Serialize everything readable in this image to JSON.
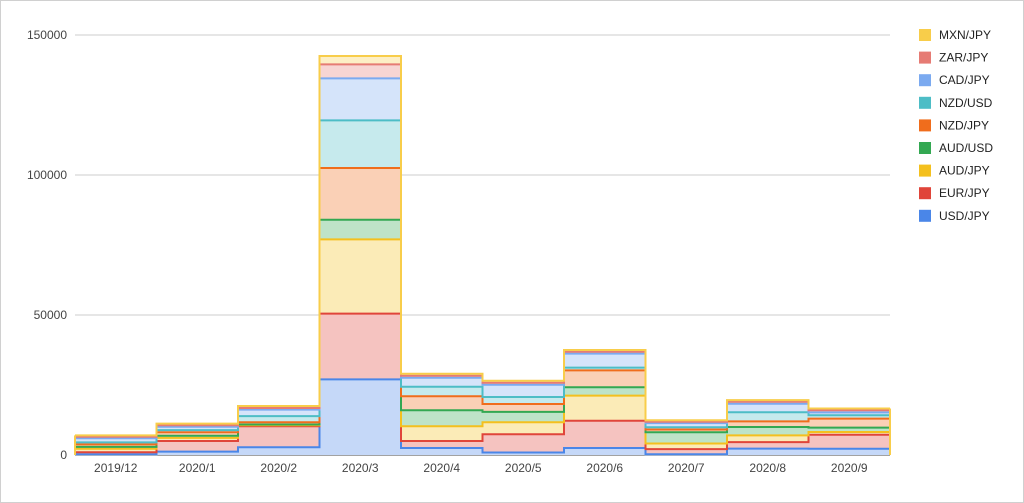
{
  "chart_data": {
    "type": "area",
    "stacked": true,
    "step": true,
    "categories": [
      "2019/12",
      "2020/1",
      "2020/2",
      "2020/3",
      "2020/4",
      "2020/5",
      "2020/6",
      "2020/7",
      "2020/8",
      "2020/9"
    ],
    "ylim": [
      0,
      150000
    ],
    "yticks": [
      0,
      50000,
      100000,
      150000
    ],
    "ytick_labels": [
      "0",
      "50000",
      "100000",
      "150000"
    ],
    "grid": true,
    "legend_position": "right",
    "series": [
      {
        "name": "USD/JPY",
        "color": "#4a86e8",
        "values": [
          300,
          1200,
          2800,
          27000,
          2500,
          900,
          2500,
          300,
          2300,
          2200
        ]
      },
      {
        "name": "EUR/JPY",
        "color": "#e0453a",
        "values": [
          700,
          3800,
          7500,
          23500,
          2500,
          6500,
          9700,
          1800,
          2300,
          5000
        ]
      },
      {
        "name": "AUD/JPY",
        "color": "#f4c01e",
        "values": [
          1200,
          1100,
          300,
          26500,
          5300,
          4300,
          9000,
          2000,
          2400,
          1000
        ]
      },
      {
        "name": "AUD/USD",
        "color": "#33a852",
        "values": [
          700,
          800,
          300,
          7000,
          5700,
          3700,
          3000,
          4000,
          3000,
          1600
        ]
      },
      {
        "name": "NZD/JPY",
        "color": "#f06d1c",
        "values": [
          900,
          1200,
          800,
          18500,
          5000,
          2800,
          6000,
          1000,
          2000,
          3200
        ]
      },
      {
        "name": "NZD/USD",
        "color": "#4dbdc6",
        "values": [
          700,
          800,
          2200,
          17000,
          3400,
          2500,
          1000,
          800,
          3300,
          1200
        ]
      },
      {
        "name": "CAD/JPY",
        "color": "#7baaf0",
        "values": [
          1500,
          1200,
          2300,
          15000,
          3200,
          4400,
          5000,
          1500,
          3000,
          1000
        ]
      },
      {
        "name": "ZAR/JPY",
        "color": "#e67b74",
        "values": [
          500,
          500,
          600,
          5000,
          700,
          700,
          700,
          500,
          700,
          800
        ]
      },
      {
        "name": "MXN/JPY",
        "color": "#f8cd4a",
        "values": [
          500,
          600,
          700,
          3000,
          700,
          700,
          600,
          500,
          600,
          600
        ]
      }
    ]
  }
}
